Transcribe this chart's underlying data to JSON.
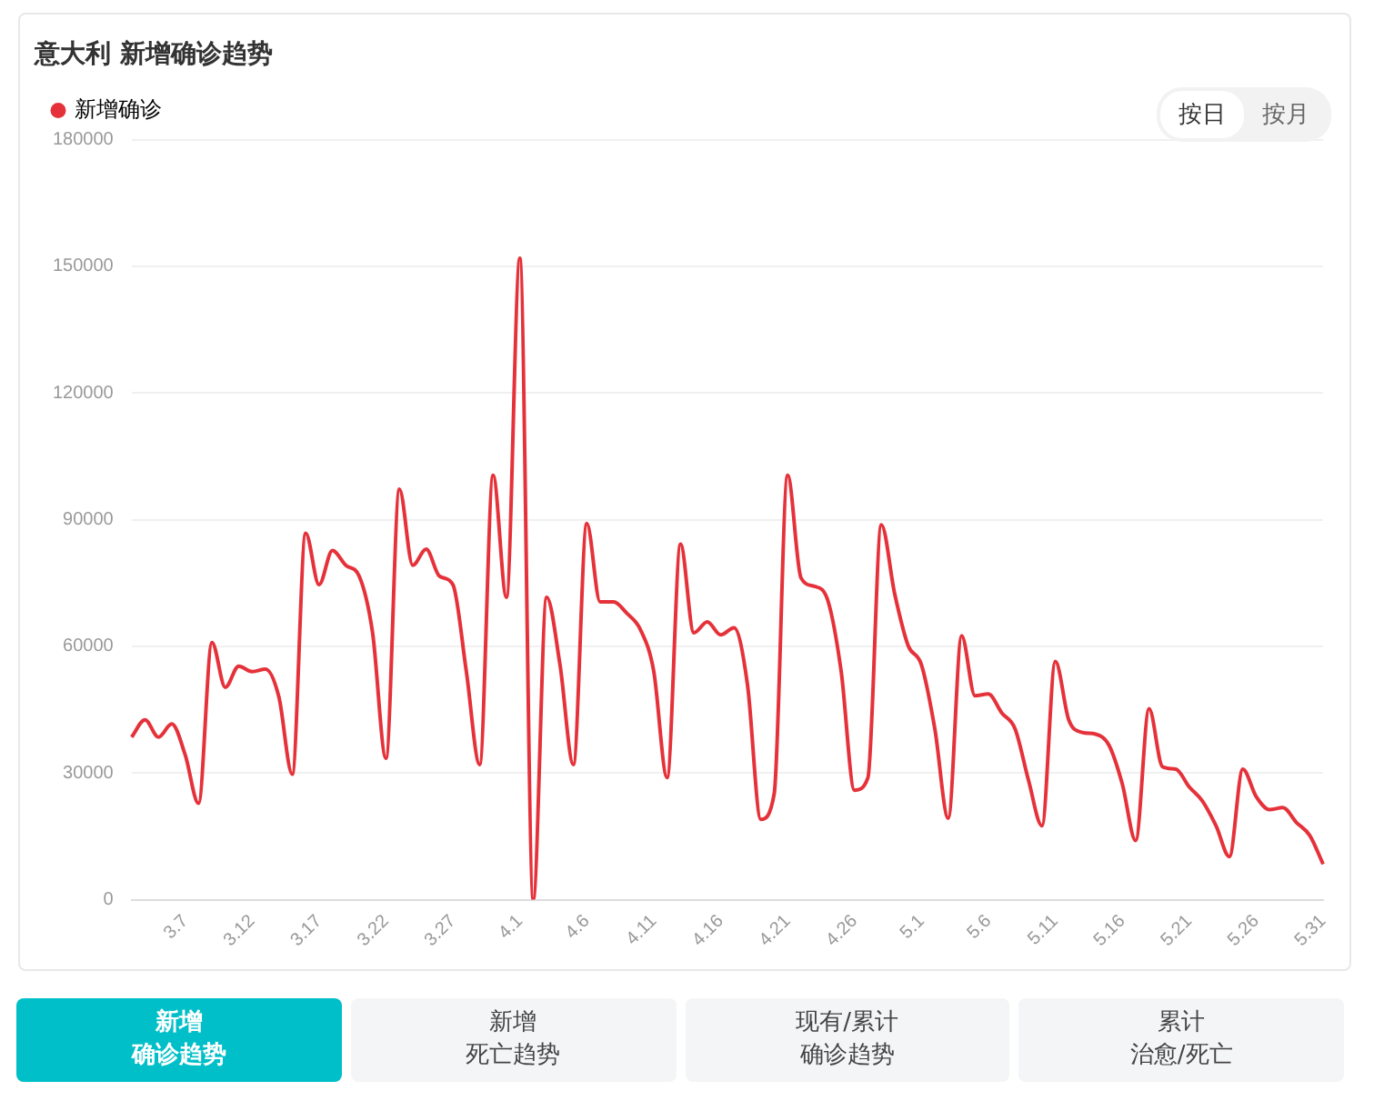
{
  "chart_data": {
    "type": "line",
    "title": "意大利 新增确诊趋势",
    "categories": [
      null,
      null,
      null,
      null,
      "3.7",
      null,
      null,
      null,
      null,
      "3.12",
      null,
      null,
      null,
      null,
      "3.17",
      null,
      null,
      null,
      null,
      "3.22",
      null,
      null,
      null,
      null,
      "3.27",
      null,
      null,
      null,
      null,
      "4.1",
      null,
      null,
      null,
      null,
      "4.6",
      null,
      null,
      null,
      null,
      "4.11",
      null,
      null,
      null,
      null,
      "4.16",
      null,
      null,
      null,
      null,
      "4.21",
      null,
      null,
      null,
      null,
      "4.26",
      null,
      null,
      null,
      null,
      "5.1",
      null,
      null,
      null,
      null,
      "5.6",
      null,
      null,
      null,
      null,
      "5.11",
      null,
      null,
      null,
      null,
      "5.16",
      null,
      null,
      null,
      null,
      "5.21",
      null,
      null,
      null,
      null,
      "5.26",
      null,
      null,
      null,
      null,
      "5.31"
    ],
    "series": [
      {
        "name": "新增确诊",
        "color": "#e5323a",
        "values": [
          38500,
          42600,
          38500,
          41600,
          34300,
          22800,
          60900,
          50300,
          55300,
          54000,
          54600,
          48000,
          29700,
          86800,
          74600,
          82700,
          79200,
          76600,
          63200,
          33500,
          97200,
          79200,
          83000,
          76600,
          74600,
          54100,
          32000,
          100500,
          71600,
          151900,
          0,
          71600,
          55600,
          32000,
          89100,
          70500,
          70500,
          67800,
          64000,
          54100,
          28900,
          84200,
          63200,
          65800,
          62700,
          64400,
          51000,
          19000,
          25100,
          100500,
          76200,
          74200,
          70900,
          54100,
          25900,
          28900,
          88800,
          72400,
          60200,
          55600,
          40400,
          19300,
          62500,
          48300,
          48700,
          44200,
          40400,
          28200,
          17500,
          56400,
          42600,
          39600,
          39200,
          36600,
          27400,
          14000,
          45200,
          31500,
          30900,
          26700,
          23300,
          17500,
          10200,
          30900,
          24400,
          21300,
          21800,
          18300,
          15200,
          8400
        ]
      }
    ],
    "ylim": [
      0,
      180000
    ],
    "yticks": [
      0,
      30000,
      60000,
      90000,
      120000,
      150000,
      180000
    ],
    "grid": "y",
    "legend": "top left",
    "marker": "none",
    "line_style": "solid",
    "annotations": [
      "按日",
      "按月",
      "新增",
      "确诊趋势",
      "新增",
      "死亡趋势",
      "现有/累计",
      "确诊趋势",
      "累计",
      "治愈/死亡"
    ]
  }
}
